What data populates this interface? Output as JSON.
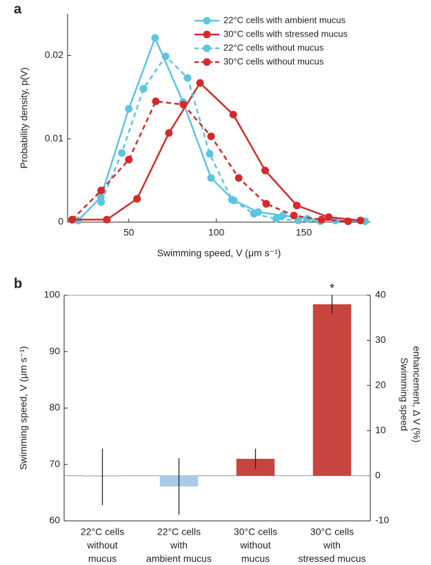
{
  "chart_data": [
    {
      "type": "line",
      "panel_label": "a",
      "xlabel": "Swimming speed, V (μm s⁻¹)",
      "ylabel": "Probability density, p(V)",
      "xlim": [
        15,
        188
      ],
      "ylim": [
        0,
        0.025
      ],
      "xticks": [
        50,
        100,
        150
      ],
      "yticks": [
        0,
        0.01,
        0.02
      ],
      "legend": "upper right",
      "series": [
        {
          "name": "22°C cells with ambient mucus",
          "color": "#5bc5e2",
          "dashed": false,
          "x": [
            21,
            34,
            50,
            65,
            81,
            97,
            110,
            124,
            138,
            152,
            168,
            185
          ],
          "values": [
            0.0002,
            0.003,
            0.0136,
            0.0221,
            0.0144,
            0.0053,
            0.0026,
            0.0012,
            0.0008,
            0.0004,
            0.0002,
            0.0001
          ]
        },
        {
          "name": "30°C cells with stressed mucus",
          "color": "#d42a2a",
          "dashed": false,
          "x": [
            17.6,
            37.4,
            54.7,
            72.9,
            90.7,
            109.7,
            127.9,
            146,
            164.2,
            182.4
          ],
          "values": [
            0.0003,
            0.0003,
            0.0028,
            0.0107,
            0.0167,
            0.0129,
            0.0062,
            0.002,
            0.0006,
            0.0002
          ]
        },
        {
          "name": "22°C cells without mucus",
          "color": "#5bc5e2",
          "dashed": true,
          "x": [
            34.2,
            46,
            58.3,
            71,
            83.6,
            96.2,
            108.9,
            121.5,
            134.2,
            146.8,
            159.5
          ],
          "values": [
            0.0024,
            0.0083,
            0.016,
            0.0199,
            0.0173,
            0.0082,
            0.0027,
            0.001,
            0.0004,
            0.0002,
            0.0001
          ]
        },
        {
          "name": "30°C cells without mucus",
          "color": "#d42a2a",
          "dashed": true,
          "x": [
            17.6,
            34.2,
            50,
            65.4,
            81.2,
            97,
            112.8,
            128.5,
            144.3,
            160.1,
            175.3
          ],
          "values": [
            0.0003,
            0.0038,
            0.0075,
            0.0145,
            0.0141,
            0.0103,
            0.0053,
            0.0022,
            0.0008,
            0.0003,
            0.0001
          ]
        }
      ]
    },
    {
      "type": "bar",
      "panel_label": "b",
      "ylabel": "Swimming speed, V (μm s⁻¹)",
      "y2label": [
        "Swimming speed",
        "enhancement, Δ V (%)"
      ],
      "ylim": [
        60,
        100
      ],
      "yticks": [
        60,
        70,
        80,
        90,
        100
      ],
      "y2lim": [
        -10,
        40
      ],
      "y2ticks": [
        -10,
        0,
        10,
        20,
        30,
        40
      ],
      "categories": [
        [
          "22°C cells",
          "without",
          "mucus"
        ],
        [
          "22°C cells",
          "with",
          "ambient mucus"
        ],
        [
          "30°C cells",
          "without",
          "mucus"
        ],
        [
          "30°C cells",
          "with",
          "stressed mucus"
        ]
      ],
      "category_colors": [
        "#6ec6e6",
        "#6ec6e6",
        "#d03c3c",
        "#d03c3c"
      ],
      "colors": [
        "#d9d9d9",
        "#a9cbe8",
        "#c8453f",
        "#c8453f"
      ],
      "values": [
        67.8,
        66.1,
        71,
        98.4
      ],
      "errors": [
        5,
        5,
        1.8,
        1.7
      ],
      "annotation": "*"
    }
  ]
}
